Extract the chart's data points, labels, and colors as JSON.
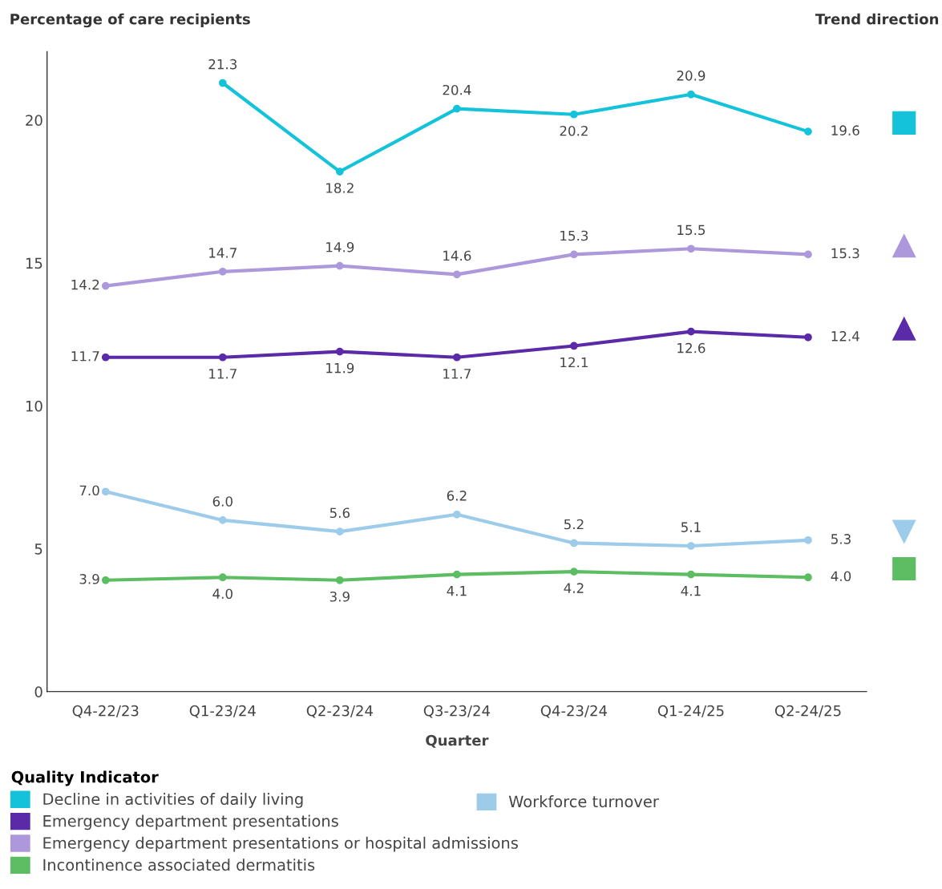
{
  "chart_data": {
    "type": "line",
    "ylabel": "Percentage of care recipients",
    "xlabel": "Quarter",
    "legend_title": "Quality Indicator",
    "categories": [
      "Q4-22/23",
      "Q1-23/24",
      "Q2-23/24",
      "Q3-23/24",
      "Q4-23/24",
      "Q1-24/25",
      "Q2-24/25"
    ],
    "series": [
      {
        "name": "Decline in activities of daily living",
        "color": "#14c3da",
        "values": [
          null,
          21.3,
          18.2,
          20.4,
          20.2,
          20.9,
          19.6
        ],
        "value_labels": [
          null,
          "21.3",
          "18.2",
          "20.4",
          "20.2",
          "20.9",
          "19.6"
        ]
      },
      {
        "name": "Emergency department presentations",
        "color": "#5a2aa8",
        "values": [
          11.7,
          11.7,
          11.9,
          11.7,
          12.1,
          12.6,
          12.4
        ],
        "value_labels": [
          "11.7",
          "11.7",
          "11.9",
          "11.7",
          "12.1",
          "12.6",
          "12.4"
        ]
      },
      {
        "name": "Emergency department presentations or hospital admissions",
        "color": "#ad98dc",
        "values": [
          14.2,
          14.7,
          14.9,
          14.6,
          15.3,
          15.5,
          15.3
        ],
        "value_labels": [
          "14.2",
          "14.7",
          "14.9",
          "14.6",
          "15.3",
          "15.5",
          "15.3"
        ]
      },
      {
        "name": "Incontinence associated dermatitis",
        "color": "#5cbd62",
        "values": [
          3.9,
          4.0,
          3.9,
          4.1,
          4.2,
          4.1,
          4.0
        ],
        "value_labels": [
          "3.9",
          "4.0",
          "3.9",
          "4.1",
          "4.2",
          "4.1",
          "4.0"
        ]
      },
      {
        "name": "Workforce turnover",
        "color": "#9dcbea",
        "values": [
          7.0,
          6.0,
          5.6,
          6.2,
          5.2,
          5.1,
          5.3
        ],
        "value_labels": [
          "7.0",
          "6.0",
          "5.6",
          "6.2",
          "5.2",
          "5.1",
          "5.3"
        ]
      }
    ],
    "ylim": [
      0,
      22.4
    ],
    "yticks": [
      0,
      5,
      10,
      15,
      20
    ],
    "grid": false,
    "legend": "bottom",
    "marker": "circle",
    "line_style": "solid",
    "annotations": [
      "Trend direction"
    ]
  }
}
